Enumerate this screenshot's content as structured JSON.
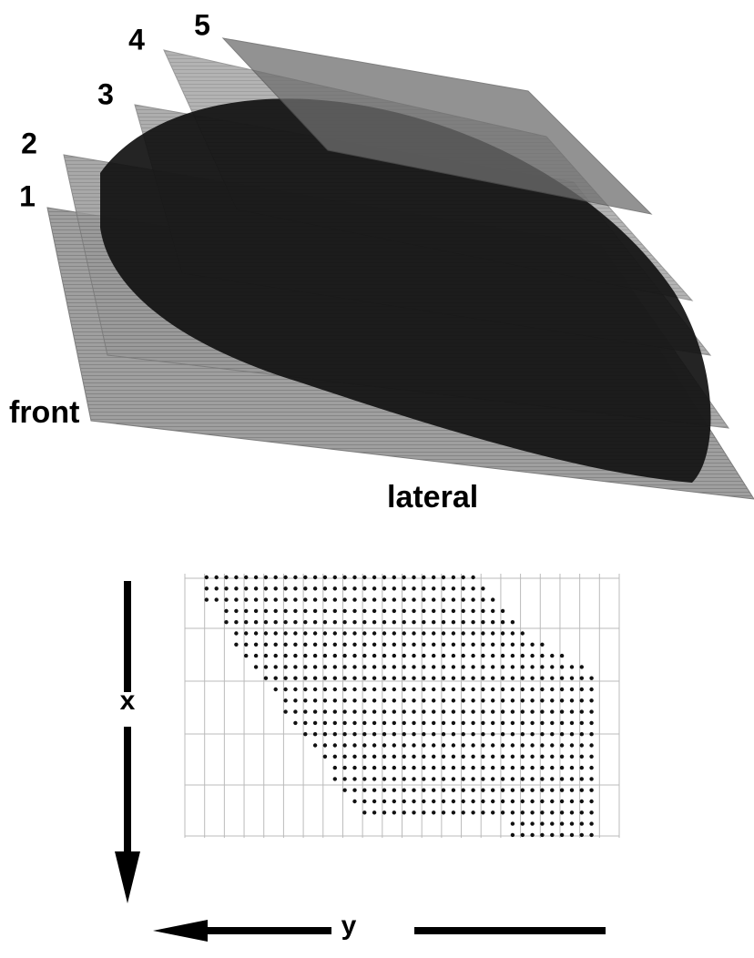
{
  "figure": {
    "layers": [
      "1",
      "2",
      "3",
      "4",
      "5"
    ],
    "front_label": "front",
    "lateral_label": "lateral",
    "x_axis_label": "x",
    "y_axis_label": "y"
  }
}
